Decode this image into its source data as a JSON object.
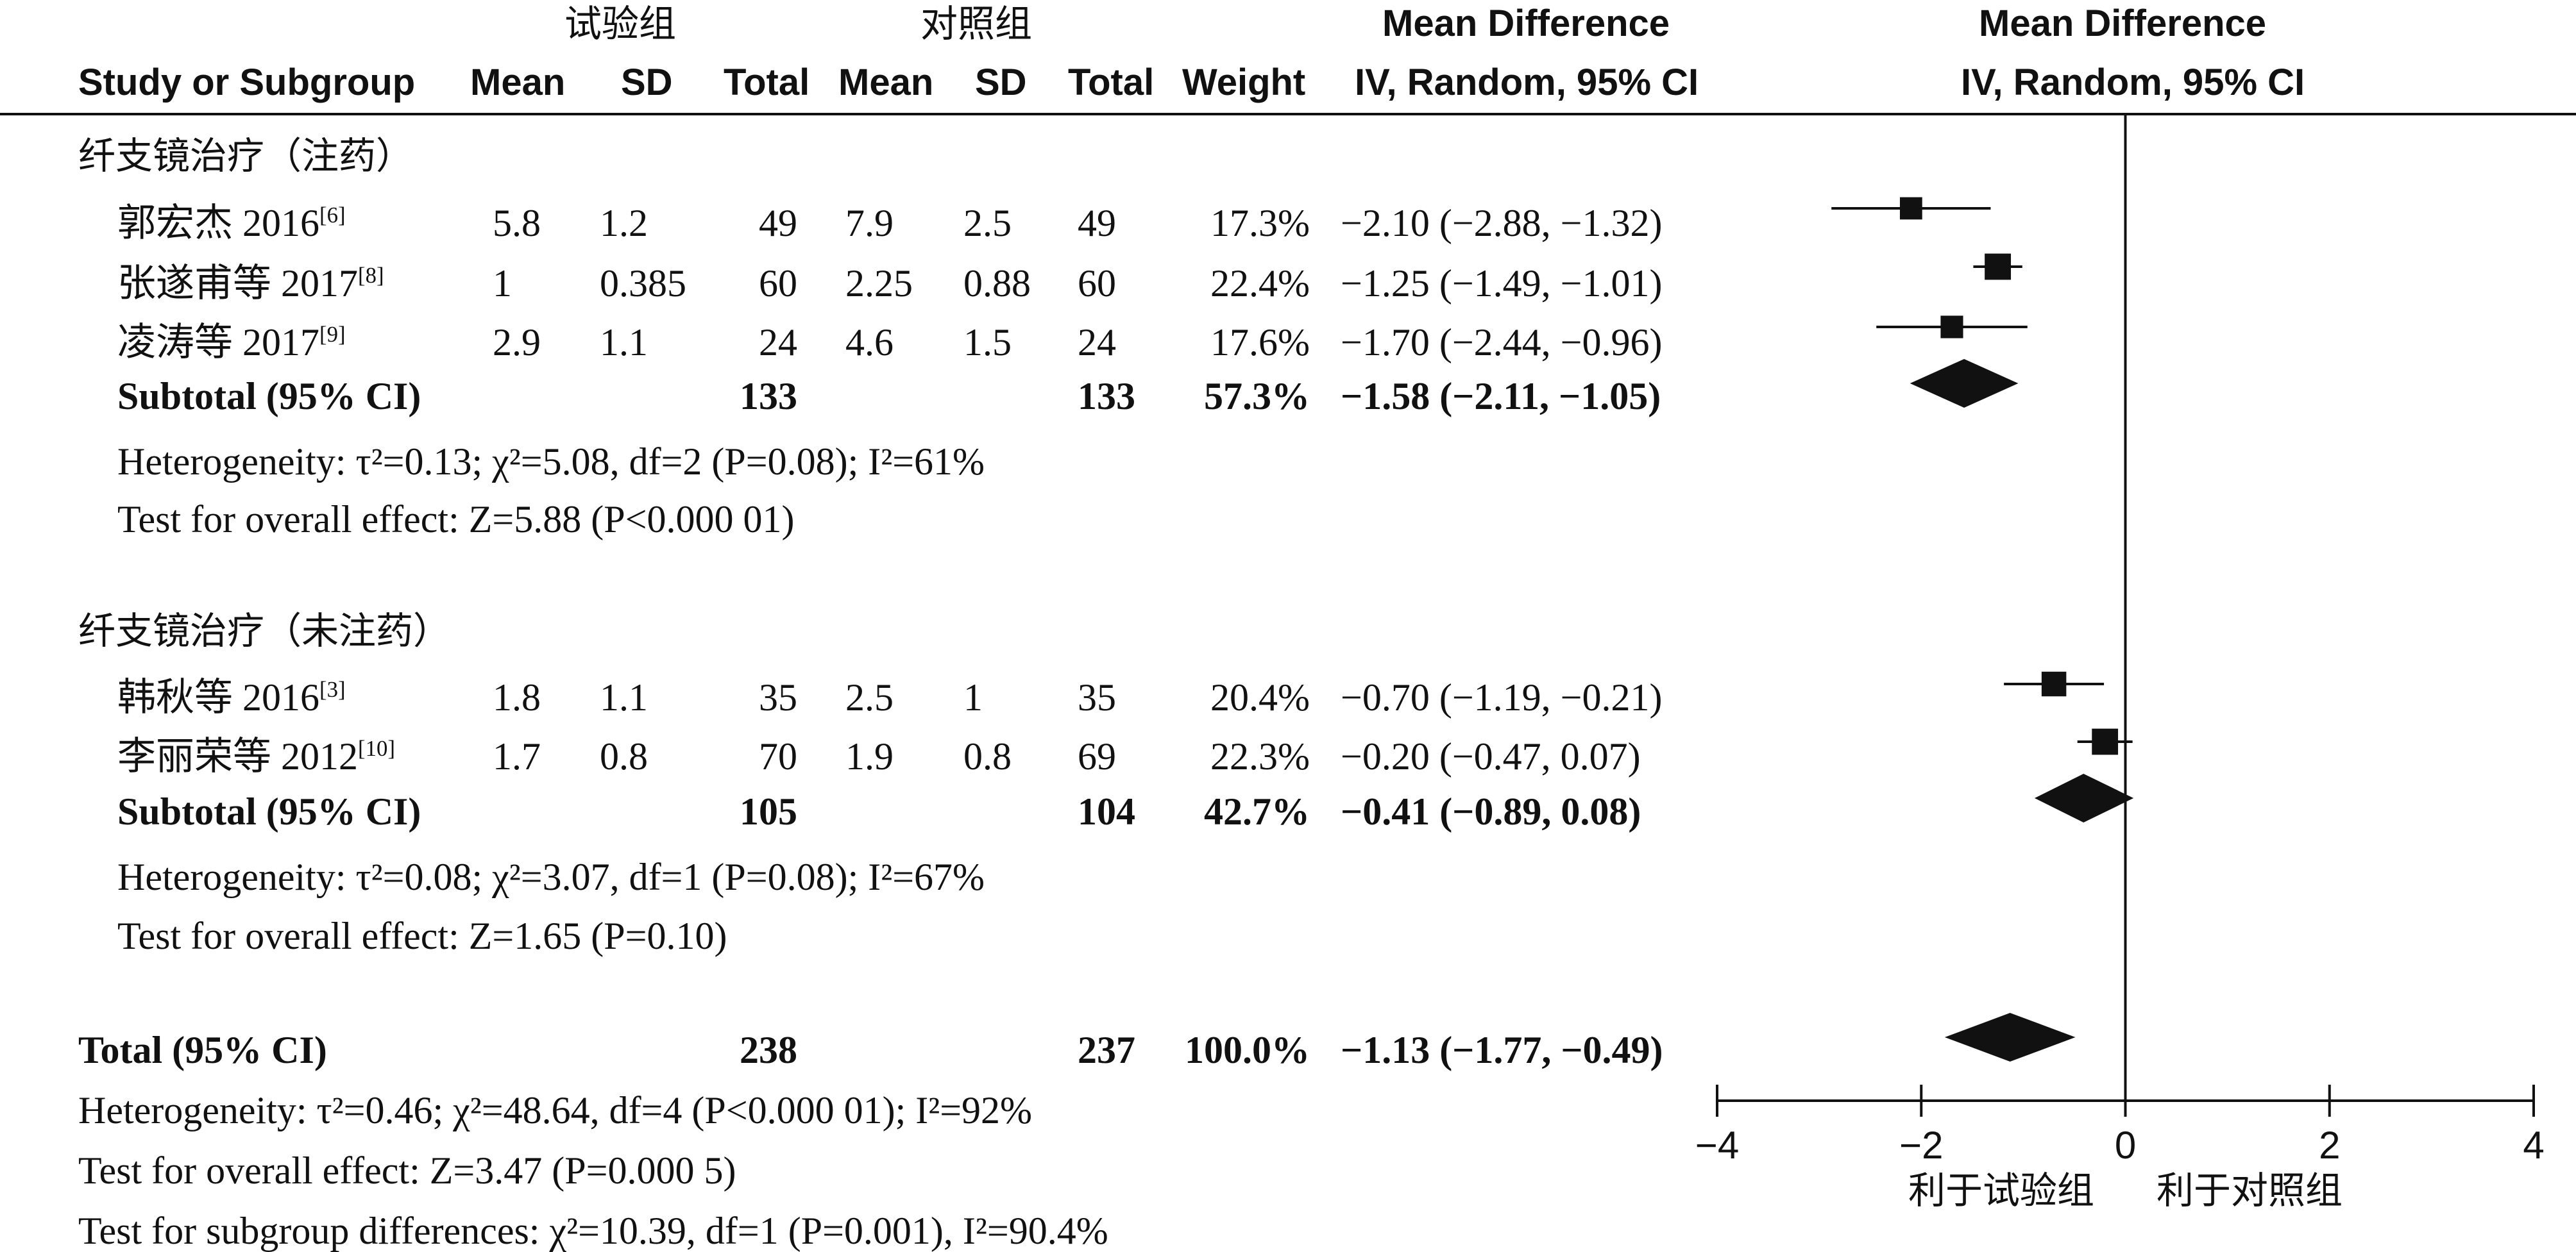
{
  "headers": {
    "group_exp": "试验组",
    "group_ctl": "对照组",
    "study": "Study or Subgroup",
    "mean": "Mean",
    "sd": "SD",
    "total": "Total",
    "weight": "Weight",
    "md_title": "Mean Difference",
    "md_sub": "IV, Random, 95% CI",
    "plot_title": "Mean Difference",
    "plot_sub": "IV, Random, 95% CI"
  },
  "subgroups": [
    {
      "name": "纤支镜治疗（注药）",
      "studies": [
        {
          "author": "郭宏杰 2016",
          "ref": "[6]",
          "exp_mean": "5.8",
          "exp_sd": "1.2",
          "exp_total": "49",
          "ctl_mean": "7.9",
          "ctl_sd": "2.5",
          "ctl_total": "49",
          "weight": "17.3%",
          "md_text": "−2.10 (−2.88, −1.32)"
        },
        {
          "author": "张遂甫等 2017",
          "ref": "[8]",
          "exp_mean": "1",
          "exp_sd": "0.385",
          "exp_total": "60",
          "ctl_mean": "2.25",
          "ctl_sd": "0.88",
          "ctl_total": "60",
          "weight": "22.4%",
          "md_text": "−1.25 (−1.49, −1.01)"
        },
        {
          "author": "凌涛等 2017",
          "ref": "[9]",
          "exp_mean": "2.9",
          "exp_sd": "1.1",
          "exp_total": "24",
          "ctl_mean": "4.6",
          "ctl_sd": "1.5",
          "ctl_total": "24",
          "weight": "17.6%",
          "md_text": "−1.70 (−2.44, −0.96)"
        }
      ],
      "subtotal": {
        "label": "Subtotal (95% CI)",
        "exp_total": "133",
        "ctl_total": "133",
        "weight": "57.3%",
        "md_text": "−1.58 (−2.11, −1.05)"
      },
      "het": "Heterogeneity: τ²=0.13; χ²=5.08, df=2 (P=0.08); I²=61%",
      "test": "Test for overall effect: Z=5.88 (P<0.000 01)"
    },
    {
      "name": "纤支镜治疗（未注药）",
      "studies": [
        {
          "author": "韩秋等 2016",
          "ref": "[3]",
          "exp_mean": "1.8",
          "exp_sd": "1.1",
          "exp_total": "35",
          "ctl_mean": "2.5",
          "ctl_sd": "1",
          "ctl_total": "35",
          "weight": "20.4%",
          "md_text": "−0.70 (−1.19, −0.21)"
        },
        {
          "author": "李丽荣等 2012",
          "ref": "[10]",
          "exp_mean": "1.7",
          "exp_sd": "0.8",
          "exp_total": "70",
          "ctl_mean": "1.9",
          "ctl_sd": "0.8",
          "ctl_total": "69",
          "weight": "22.3%",
          "md_text": "−0.20 (−0.47, 0.07)"
        }
      ],
      "subtotal": {
        "label": "Subtotal (95% CI)",
        "exp_total": "105",
        "ctl_total": "104",
        "weight": "42.7%",
        "md_text": "−0.41 (−0.89, 0.08)"
      },
      "het": "Heterogeneity: τ²=0.08; χ²=3.07, df=1 (P=0.08); I²=67%",
      "test": "Test for overall effect: Z=1.65 (P=0.10)"
    }
  ],
  "total": {
    "label": "Total (95% CI)",
    "exp_total": "238",
    "ctl_total": "237",
    "weight": "100.0%",
    "md_text": "−1.13 (−1.77, −0.49)"
  },
  "footer": {
    "het": "Heterogeneity: τ²=0.46; χ²=48.64, df=4 (P<0.000 01); I²=92%",
    "test": "Test for overall effect: Z=3.47 (P=0.000 5)",
    "subgroup": "Test for subgroup differences: χ²=10.39, df=1 (P=0.001), I²=90.4%"
  },
  "axis": {
    "favours_left": "利于试验组",
    "favours_right": "利于对照组"
  },
  "chart_data": {
    "type": "forest",
    "xlim": [
      -4,
      4
    ],
    "xticks": [
      -4,
      -2,
      0,
      2,
      4
    ],
    "xticklabels": [
      "−4",
      "−2",
      "0",
      "2",
      "4"
    ],
    "studies": [
      {
        "label": "郭宏杰 2016",
        "md": -2.1,
        "lower": -2.88,
        "upper": -1.32,
        "weight": 17.3
      },
      {
        "label": "张遂甫等 2017",
        "md": -1.25,
        "lower": -1.49,
        "upper": -1.01,
        "weight": 22.4
      },
      {
        "label": "凌涛等 2017",
        "md": -1.7,
        "lower": -2.44,
        "upper": -0.96,
        "weight": 17.6
      },
      {
        "label": "韩秋等 2016",
        "md": -0.7,
        "lower": -1.19,
        "upper": -0.21,
        "weight": 20.4
      },
      {
        "label": "李丽荣等 2012",
        "md": -0.2,
        "lower": -0.47,
        "upper": 0.07,
        "weight": 22.3
      }
    ],
    "pooled": [
      {
        "label": "Subtotal (95% CI)",
        "md": -1.58,
        "lower": -2.11,
        "upper": -1.05
      },
      {
        "label": "Subtotal (95% CI)",
        "md": -0.41,
        "lower": -0.89,
        "upper": 0.08
      },
      {
        "label": "Total (95% CI)",
        "md": -1.13,
        "lower": -1.77,
        "upper": -0.49
      }
    ]
  }
}
